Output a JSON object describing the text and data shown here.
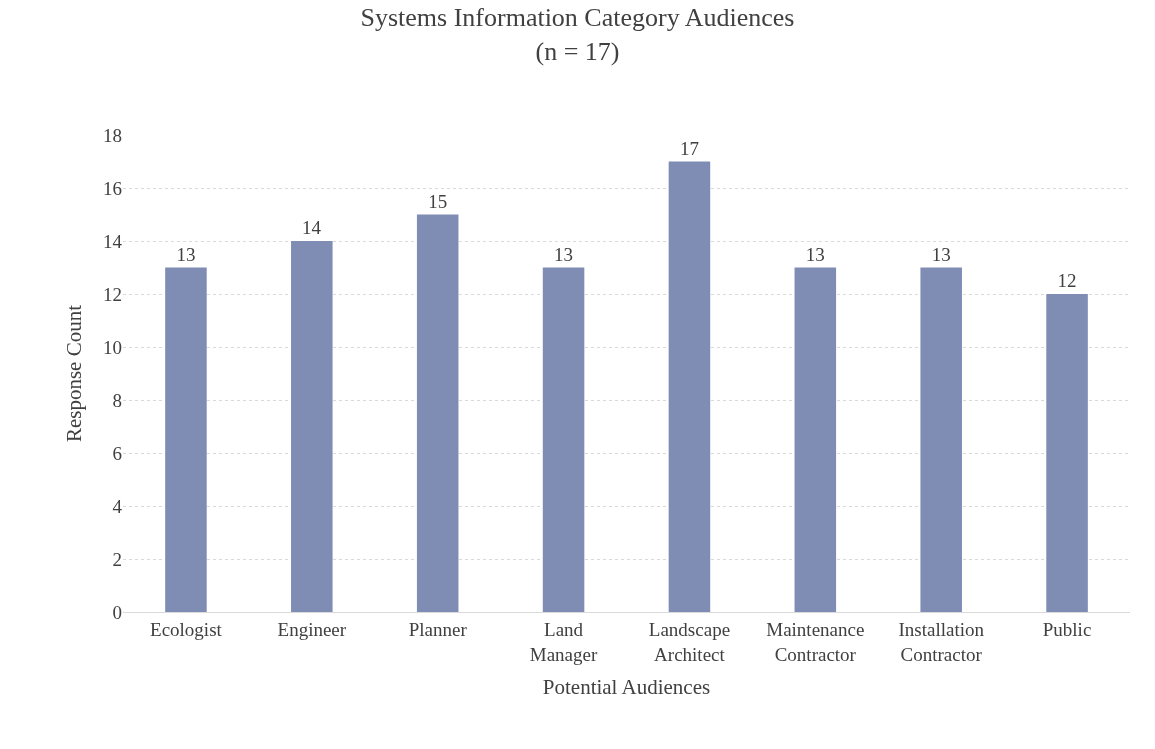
{
  "chart_data": {
    "type": "bar",
    "title": "Systems Information Category Audiences",
    "subtitle": "(n = 17)",
    "xlabel": "Potential Audiences",
    "ylabel": "Response Count",
    "categories": [
      "Ecologist",
      "Engineer",
      "Planner",
      "Land Manager",
      "Landscape Architect",
      "Maintenance Contractor",
      "Installation Contractor",
      "Public"
    ],
    "values": [
      13,
      14,
      15,
      13,
      17,
      13,
      13,
      12
    ],
    "color": "#7f8db5",
    "ylim": [
      0,
      18
    ],
    "yticks": [
      0,
      2,
      4,
      6,
      8,
      10,
      12,
      14,
      16,
      18
    ],
    "grid": "y",
    "data_labels": true,
    "legend": false
  }
}
